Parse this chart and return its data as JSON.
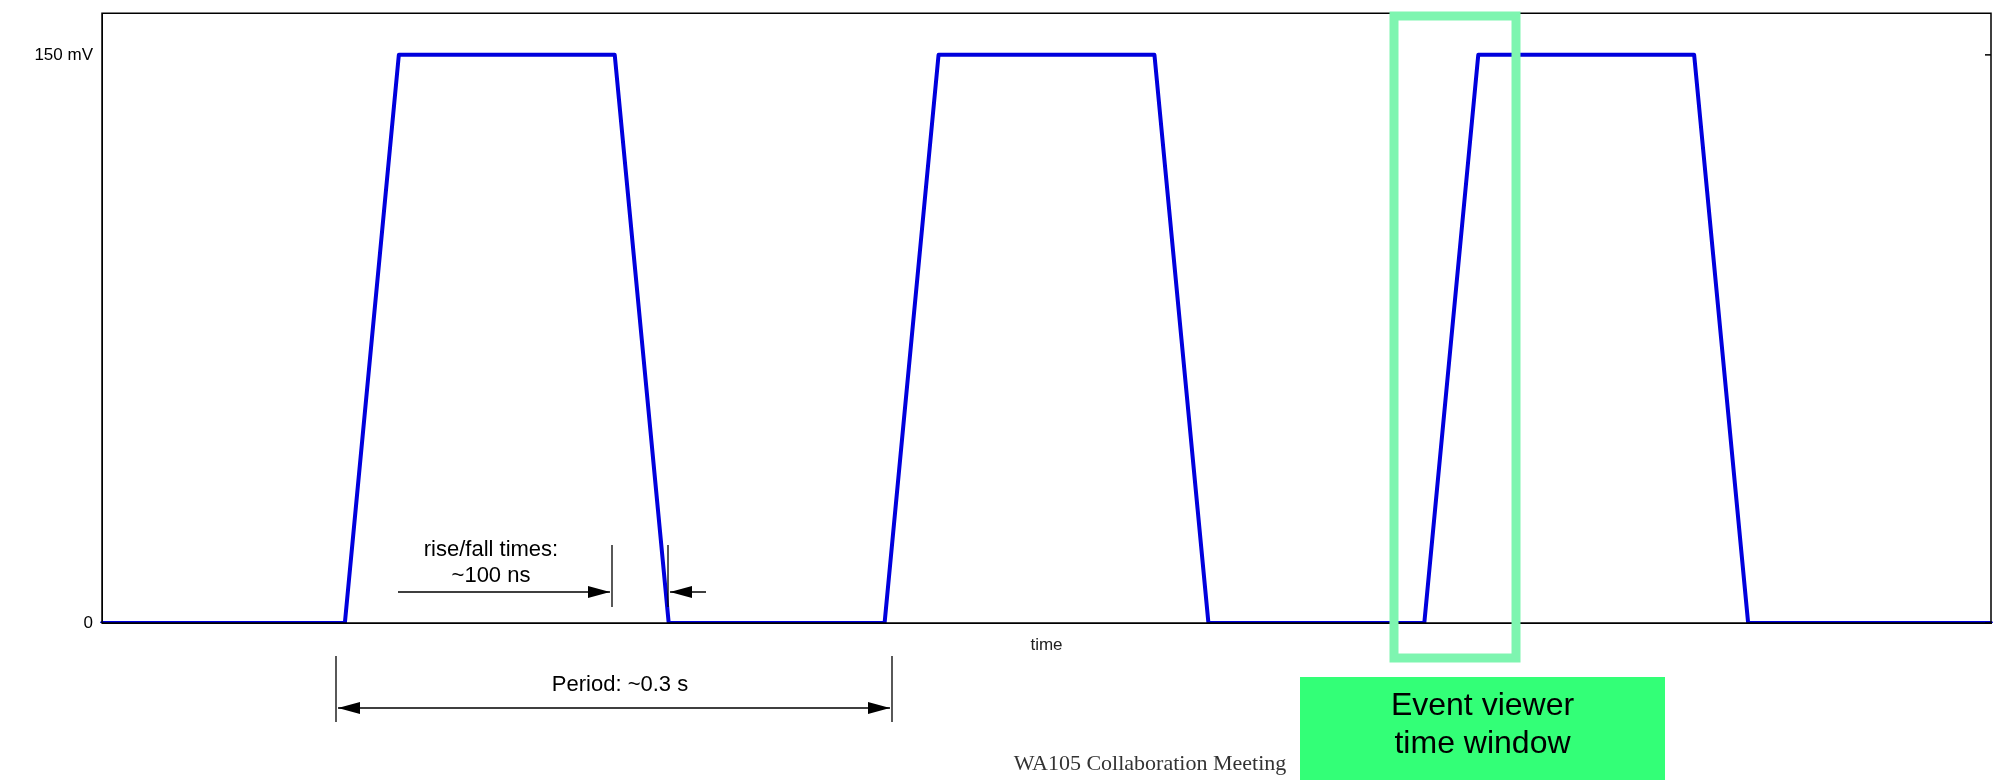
{
  "chart_data": {
    "type": "line",
    "xlabel": "time",
    "categories": [
      null,
      null,
      null,
      null,
      null,
      null,
      null,
      null,
      null,
      null,
      null,
      null,
      null,
      null,
      null,
      null,
      null,
      null,
      null,
      null,
      null,
      null,
      null,
      null,
      null,
      null,
      null,
      null,
      null,
      null,
      null,
      null,
      null,
      null,
      null,
      null,
      null,
      null,
      null,
      null,
      null,
      null,
      null,
      null,
      null,
      null,
      null,
      null,
      null,
      null,
      null,
      null,
      null,
      null,
      null,
      null,
      null,
      null,
      null,
      null,
      null,
      null,
      null,
      null,
      null,
      null,
      null,
      null,
      null,
      null,
      null
    ],
    "series": [
      {
        "color": "#0000dd",
        "values": [
          0,
          0,
          0,
          0,
          0,
          0,
          0,
          0,
          0,
          0,
          75,
          150,
          150,
          150,
          150,
          150,
          150,
          150,
          150,
          150,
          75,
          0,
          0,
          0,
          0,
          0,
          0,
          0,
          0,
          0,
          75,
          150,
          150,
          150,
          150,
          150,
          150,
          150,
          150,
          150,
          75,
          0,
          0,
          0,
          0,
          0,
          0,
          0,
          0,
          0,
          75,
          150,
          150,
          150,
          150,
          150,
          150,
          150,
          150,
          150,
          75,
          0,
          0,
          0,
          0,
          0,
          0,
          0,
          0,
          0,
          0
        ]
      }
    ],
    "ylim": [
      0,
      161
    ],
    "yticks": [
      0,
      {
        "value": 150,
        "label": "150 mV"
      }
    ],
    "tick_labels": "y",
    "grid": false,
    "legend": false,
    "marker": "none",
    "line_style": "solid",
    "annotations": [
      "rise/fall times: ~100 ns",
      "Period: ~0.3 s",
      "Event viewer time window",
      "WA105 Collaboration Meeting"
    ]
  }
}
